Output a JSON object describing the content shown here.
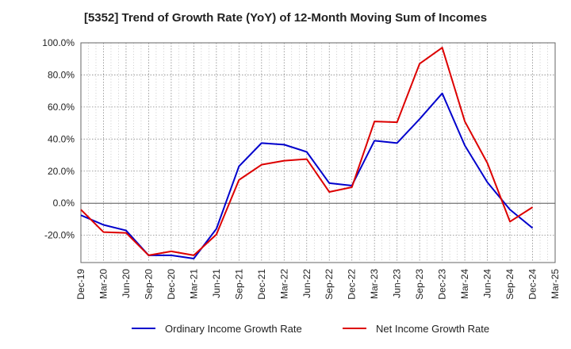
{
  "chart_data": {
    "type": "line",
    "title": "[5352]  Trend of Growth Rate (YoY) of 12-Month Moving Sum of Incomes",
    "xlabel": "",
    "ylabel": "",
    "x": [
      "Dec-19",
      "Mar-20",
      "Jun-20",
      "Sep-20",
      "Dec-20",
      "Mar-21",
      "Jun-21",
      "Sep-21",
      "Dec-21",
      "Mar-22",
      "Jun-22",
      "Sep-22",
      "Dec-22",
      "Mar-23",
      "Jun-23",
      "Sep-23",
      "Dec-23",
      "Mar-24",
      "Jun-24",
      "Sep-24",
      "Dec-24",
      "Mar-25"
    ],
    "ylim": [
      -37,
      100
    ],
    "yticks": [
      100,
      80,
      60,
      40,
      20,
      0,
      -20
    ],
    "ytick_labels": [
      "100.0%",
      "80.0%",
      "60.0%",
      "40.0%",
      "20.0%",
      "0.0%",
      "-20.0%"
    ],
    "grid": true,
    "legend": "bottom",
    "series": [
      {
        "name": "Ordinary Income Growth Rate",
        "color": "#0000cc",
        "values": [
          -7.5,
          -13.5,
          -17,
          -32.5,
          -32.5,
          -34.5,
          -16,
          23,
          37.5,
          36.5,
          32,
          12.5,
          11,
          39,
          37.5,
          52.5,
          68.5,
          36,
          13,
          -4,
          -15.5,
          null
        ]
      },
      {
        "name": "Net Income Growth Rate",
        "color": "#dd0000",
        "values": [
          -4,
          -18,
          -18.5,
          -32.5,
          -30,
          -32.5,
          -19.5,
          14.5,
          24,
          26.5,
          27.5,
          7,
          10,
          51,
          50.5,
          87,
          97,
          51,
          25,
          -11.5,
          -2.5,
          null
        ]
      }
    ]
  }
}
